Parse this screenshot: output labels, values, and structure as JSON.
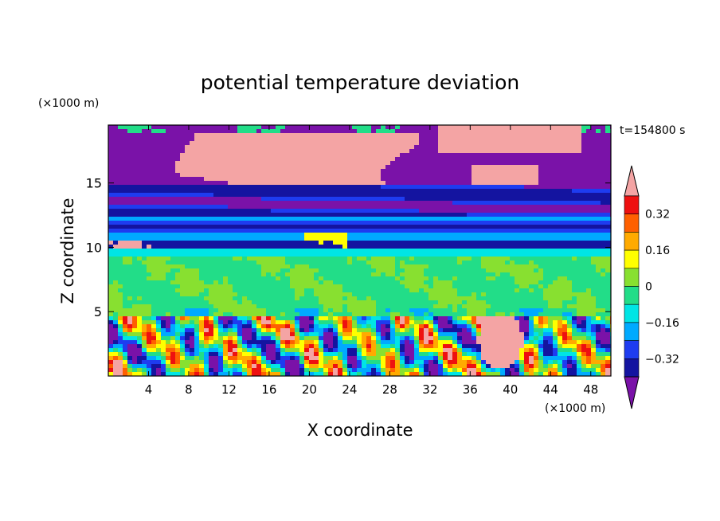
{
  "chart_data": {
    "type": "heatmap",
    "title": "potential temperature deviation",
    "xlabel": "X coordinate",
    "ylabel": "Z coordinate",
    "x_unit": "(×1000 m)",
    "y_unit": "(×1000 m)",
    "time_label": "t=154800 s",
    "xlim": [
      0,
      50
    ],
    "ylim": [
      0,
      19.5
    ],
    "x_ticks": [
      4,
      8,
      12,
      16,
      20,
      24,
      28,
      32,
      36,
      40,
      44,
      48
    ],
    "x_tick_labels": [
      "4",
      "8",
      "12",
      "16",
      "20",
      "24",
      "28",
      "32",
      "36",
      "40",
      "44",
      "48"
    ],
    "y_ticks": [
      5,
      10,
      15
    ],
    "y_tick_labels": [
      "5",
      "10",
      "15"
    ],
    "colorbar": {
      "levels": [
        -0.4,
        -0.32,
        -0.24,
        -0.16,
        -0.08,
        0,
        0.08,
        0.16,
        0.24,
        0.32,
        0.4
      ],
      "colors": [
        "#7a12a8",
        "#1414a0",
        "#1e3cf0",
        "#00aaff",
        "#00e5e5",
        "#22dd88",
        "#88e030",
        "#ffff00",
        "#ffaa00",
        "#ff6000",
        "#ee1010",
        "#f4a4a4"
      ],
      "tick_values": [
        0.32,
        0.16,
        0,
        -0.16,
        -0.32
      ],
      "tick_labels": [
        "0.32",
        "0.16",
        "0",
        "−0.16",
        "−0.32"
      ],
      "extend": "both"
    },
    "field_bands": [
      {
        "z": [
          0,
          4.7
        ],
        "description_level": "mixed -0.4 to 0.4"
      },
      {
        "z": [
          4.7,
          10
        ],
        "description_level": "0 to 0.08"
      },
      {
        "z": [
          10,
          12.5
        ],
        "description_level": "-0.32 to 0.24"
      },
      {
        "z": [
          12.5,
          15
        ],
        "description_level": "-0.4 to -0.24"
      },
      {
        "z": [
          15,
          19.5
        ],
        "description_level": "-0.4 and >0.4"
      }
    ]
  }
}
